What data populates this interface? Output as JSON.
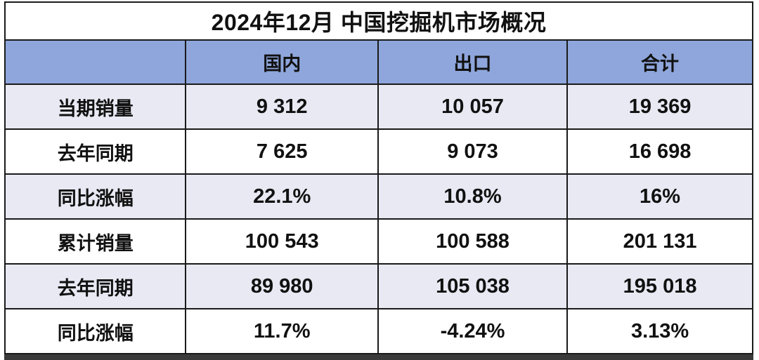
{
  "colors": {
    "header_bg": "#8EA6DB",
    "alt_row_bg": "#E8E9F3",
    "border": "#1A1A1A",
    "bottom_shadow": "#3A3A3A",
    "text": "#111111"
  },
  "chart_data": {
    "type": "table",
    "title": "2024年12月 中国挖掘机市场概况",
    "columns": [
      "",
      "国内",
      "出口",
      "合计"
    ],
    "rows": [
      {
        "label": "当期销量",
        "values": [
          "9 312",
          "10 057",
          "19 369"
        ]
      },
      {
        "label": "去年同期",
        "values": [
          "7 625",
          "9 073",
          "16 698"
        ]
      },
      {
        "label": "同比涨幅",
        "values": [
          "22.1%",
          "10.8%",
          "16%"
        ]
      },
      {
        "label": "累计销量",
        "values": [
          "100 543",
          "100 588",
          "201 131"
        ]
      },
      {
        "label": "去年同期",
        "values": [
          "89 980",
          "105 038",
          "195 018"
        ]
      },
      {
        "label": "同比涨幅",
        "values": [
          "11.7%",
          "-4.24%",
          "3.13%"
        ]
      }
    ]
  }
}
